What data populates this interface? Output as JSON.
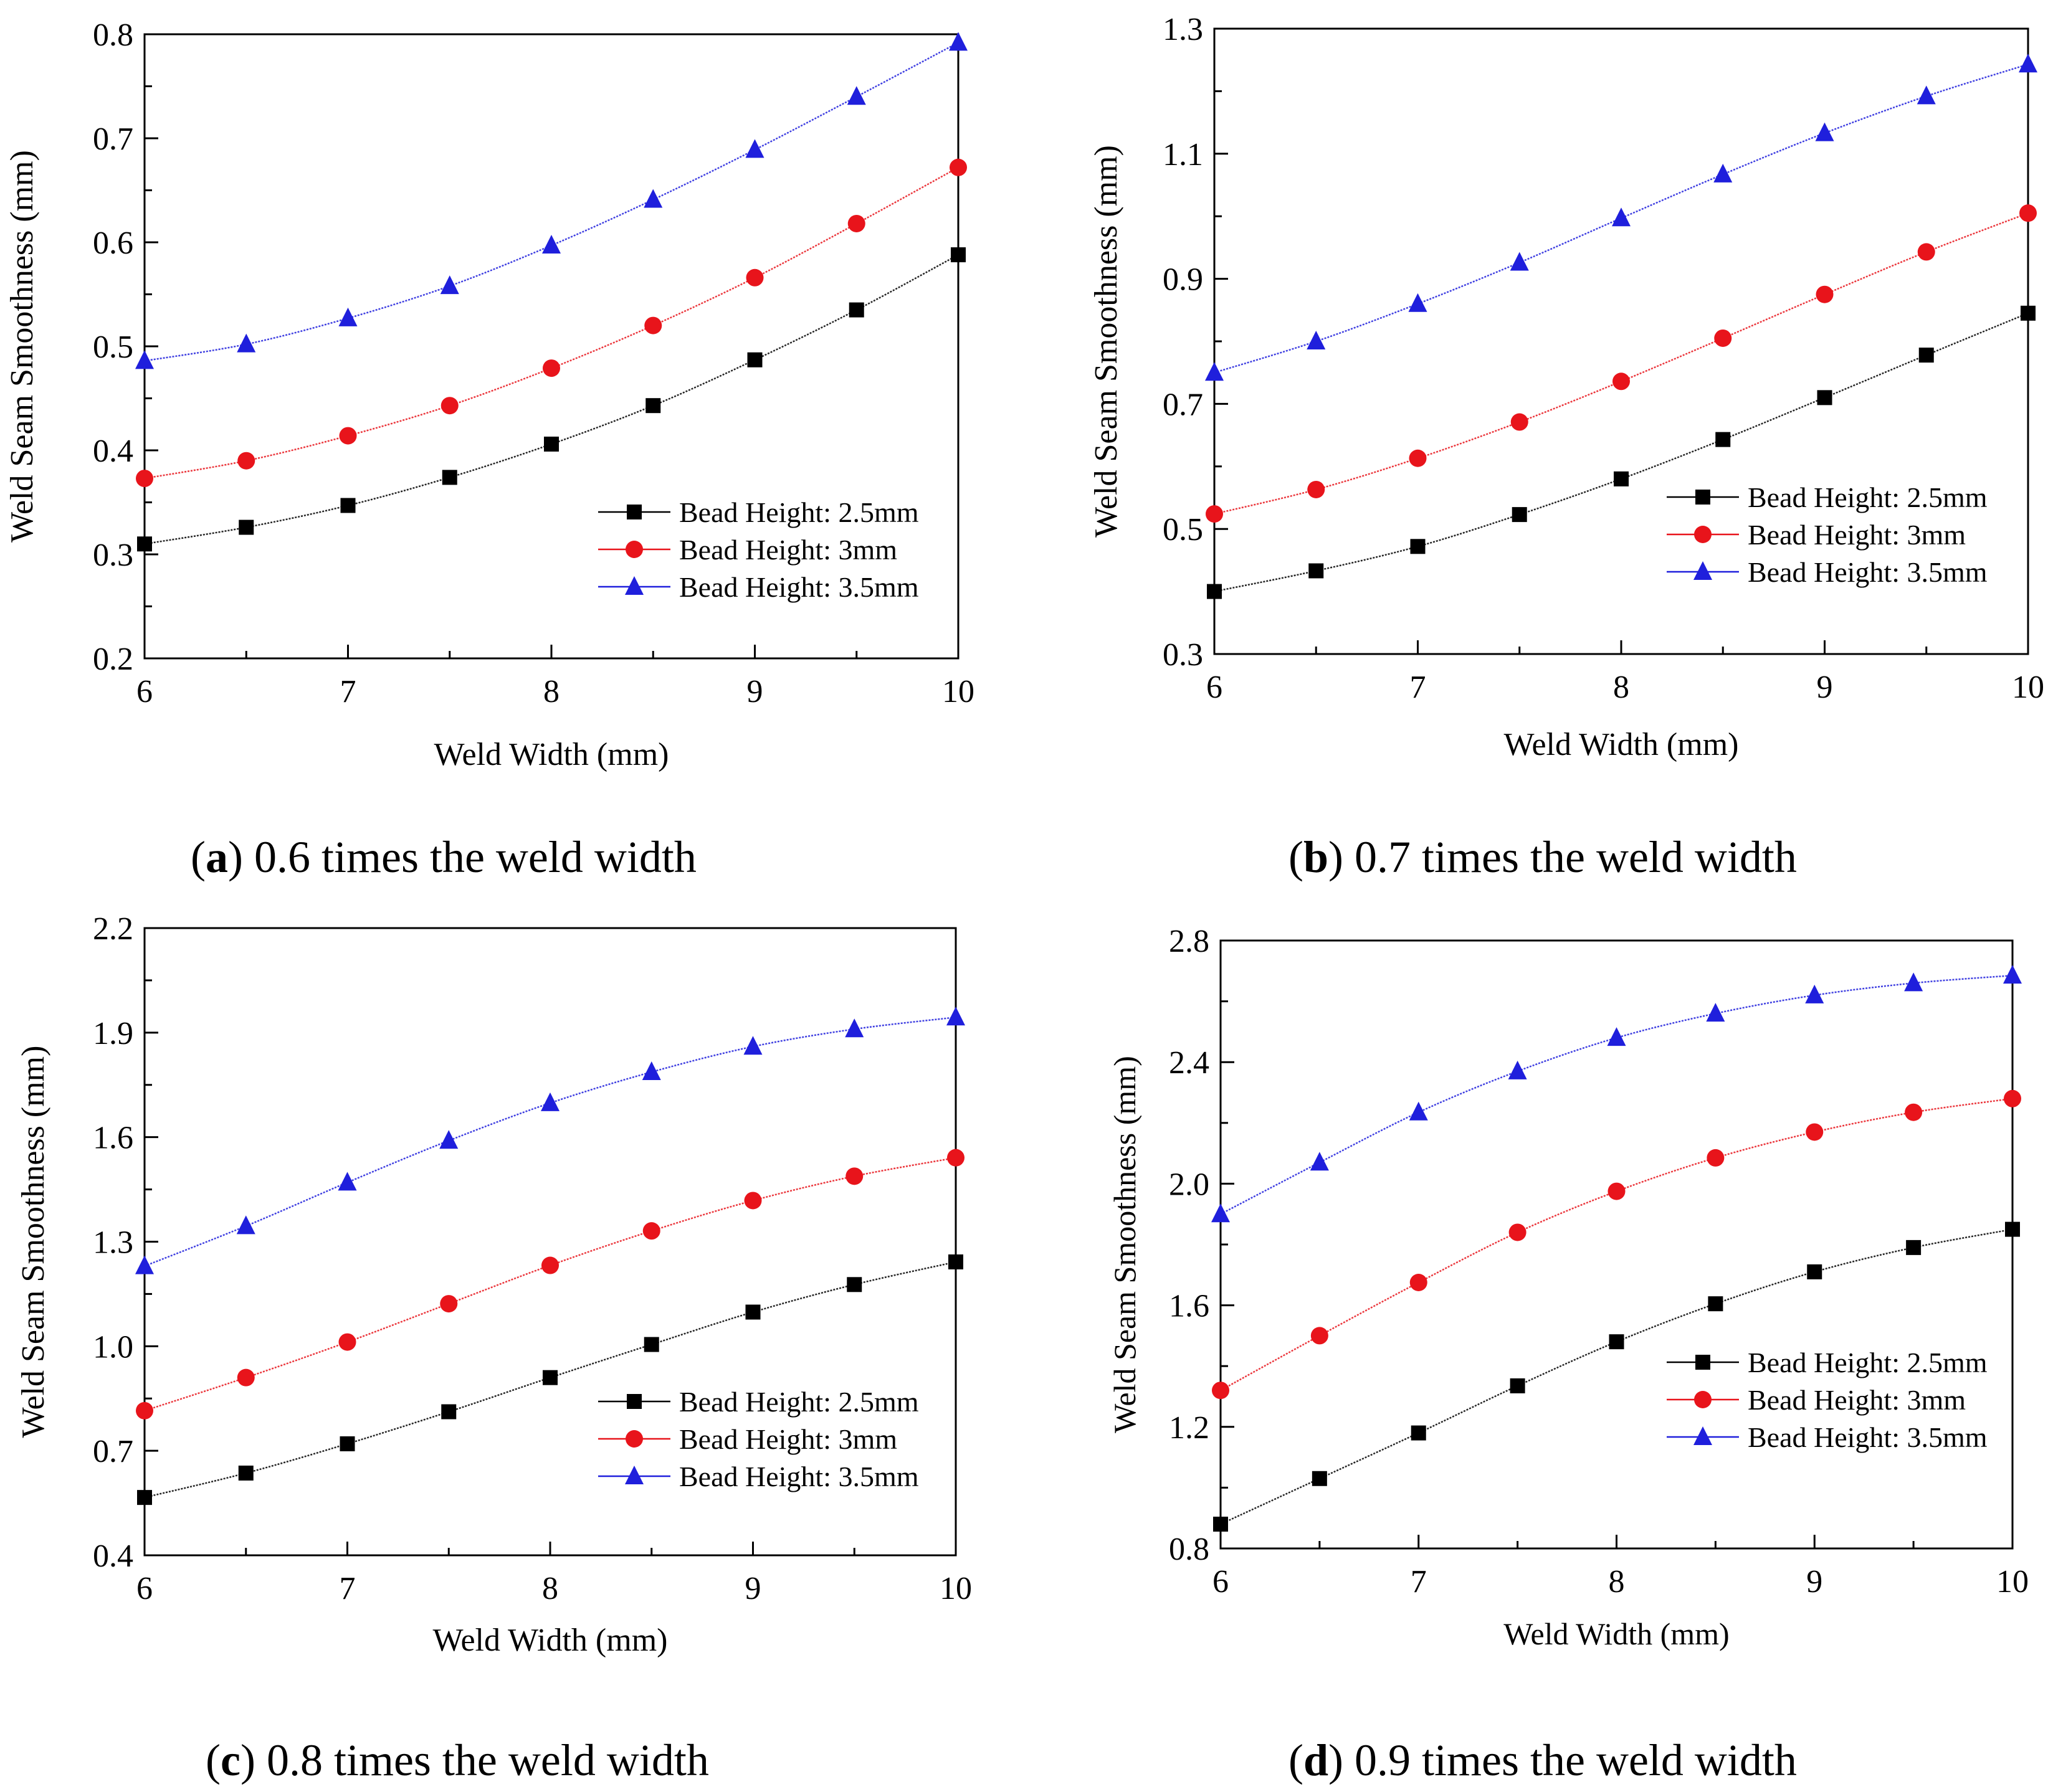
{
  "figure": {
    "captions": [
      {
        "letter": "a",
        "text": " 0.6 times the weld width"
      },
      {
        "letter": "b",
        "text": " 0.7 times the weld width"
      },
      {
        "letter": "c",
        "text": " 0.8 times the weld width"
      },
      {
        "letter": "d",
        "text": " 0.9 times the weld width"
      }
    ]
  },
  "colors": {
    "series_black": "#000000",
    "series_red": "#e8141b",
    "series_blue": "#1f1fdc"
  },
  "chart_data": [
    {
      "type": "line",
      "panel": "a",
      "xlabel": "Weld Width (mm)",
      "ylabel": "Weld Seam Smoothness (mm)",
      "xlim": [
        6,
        10
      ],
      "ylim": [
        0.2,
        0.8
      ],
      "xticks": [
        "6",
        "7",
        "8",
        "9",
        "10"
      ],
      "yticks": [
        "0.2",
        "0.3",
        "0.4",
        "0.5",
        "0.6",
        "0.7",
        "0.8"
      ],
      "legend_position": "bottom-right",
      "x": [
        6,
        6.5,
        7,
        7.5,
        8,
        8.5,
        9,
        9.5,
        10
      ],
      "series": [
        {
          "name": "Bead Height: 2.5mm",
          "marker": "square",
          "color": "#000000",
          "values": [
            0.31,
            0.326,
            0.347,
            0.374,
            0.406,
            0.443,
            0.487,
            0.535,
            0.588
          ]
        },
        {
          "name": "Bead Height: 3mm",
          "marker": "circle",
          "color": "#e8141b",
          "values": [
            0.373,
            0.39,
            0.414,
            0.443,
            0.479,
            0.52,
            0.566,
            0.618,
            0.672
          ]
        },
        {
          "name": "Bead Height: 3.5mm",
          "marker": "triangle",
          "color": "#1f1fdc",
          "values": [
            0.486,
            0.502,
            0.527,
            0.558,
            0.597,
            0.641,
            0.689,
            0.74,
            0.792
          ]
        }
      ]
    },
    {
      "type": "line",
      "panel": "b",
      "xlabel": "Weld Width (mm)",
      "ylabel": "Weld Seam Smoothness (mm)",
      "xlim": [
        6,
        10
      ],
      "ylim": [
        0.3,
        1.3
      ],
      "xticks": [
        "6",
        "7",
        "8",
        "9",
        "10"
      ],
      "yticks": [
        "0.3",
        "0.5",
        "0.7",
        "0.9",
        "1.1",
        "1.3"
      ],
      "legend_position": "bottom-right",
      "x": [
        6,
        6.5,
        7,
        7.5,
        8,
        8.5,
        9,
        9.5,
        10
      ],
      "series": [
        {
          "name": "Bead Height: 2.5mm",
          "marker": "square",
          "color": "#000000",
          "values": [
            0.4,
            0.433,
            0.472,
            0.523,
            0.58,
            0.643,
            0.71,
            0.778,
            0.845
          ]
        },
        {
          "name": "Bead Height: 3mm",
          "marker": "circle",
          "color": "#e8141b",
          "values": [
            0.524,
            0.563,
            0.613,
            0.671,
            0.736,
            0.805,
            0.875,
            0.943,
            1.005
          ]
        },
        {
          "name": "Bead Height: 3.5mm",
          "marker": "triangle",
          "color": "#1f1fdc",
          "values": [
            0.75,
            0.8,
            0.86,
            0.926,
            0.997,
            1.067,
            1.133,
            1.192,
            1.243
          ]
        }
      ]
    },
    {
      "type": "line",
      "panel": "c",
      "xlabel": "Weld Width (mm)",
      "ylabel": "Weld Seam Smoothness (mm)",
      "xlim": [
        6,
        10
      ],
      "ylim": [
        0.4,
        2.2
      ],
      "xticks": [
        "6",
        "7",
        "8",
        "9",
        "10"
      ],
      "yticks": [
        "0.4",
        "0.7",
        "1.0",
        "1.3",
        "1.6",
        "1.9",
        "2.2"
      ],
      "legend_position": "bottom-right",
      "x": [
        6,
        6.5,
        7,
        7.5,
        8,
        8.5,
        9,
        9.5,
        10
      ],
      "series": [
        {
          "name": "Bead Height: 2.5mm",
          "marker": "square",
          "color": "#000000",
          "values": [
            0.566,
            0.636,
            0.72,
            0.812,
            0.91,
            1.005,
            1.098,
            1.177,
            1.242
          ]
        },
        {
          "name": "Bead Height: 3mm",
          "marker": "circle",
          "color": "#e8141b",
          "values": [
            0.815,
            0.91,
            1.012,
            1.122,
            1.232,
            1.331,
            1.418,
            1.488,
            1.541
          ]
        },
        {
          "name": "Bead Height: 3.5mm",
          "marker": "triangle",
          "color": "#1f1fdc",
          "values": [
            1.23,
            1.345,
            1.47,
            1.59,
            1.698,
            1.787,
            1.86,
            1.91,
            1.944
          ]
        }
      ]
    },
    {
      "type": "line",
      "panel": "d",
      "xlabel": "Weld Width (mm)",
      "ylabel": "Weld Seam Smoothness (mm)",
      "xlim": [
        6,
        10
      ],
      "ylim": [
        0.8,
        2.8
      ],
      "xticks": [
        "6",
        "7",
        "8",
        "9",
        "10"
      ],
      "yticks": [
        "0.8",
        "1.2",
        "1.6",
        "2.0",
        "2.4",
        "2.8"
      ],
      "legend_position": "bottom-right",
      "x": [
        6,
        6.5,
        7,
        7.5,
        8,
        8.5,
        9,
        9.5,
        10
      ],
      "series": [
        {
          "name": "Bead Height: 2.5mm",
          "marker": "square",
          "color": "#000000",
          "values": [
            0.88,
            1.03,
            1.18,
            1.335,
            1.48,
            1.605,
            1.71,
            1.79,
            1.85
          ]
        },
        {
          "name": "Bead Height: 3mm",
          "marker": "circle",
          "color": "#e8141b",
          "values": [
            1.32,
            1.5,
            1.675,
            1.84,
            1.975,
            2.085,
            2.17,
            2.235,
            2.28
          ]
        },
        {
          "name": "Bead Height: 3.5mm",
          "marker": "triangle",
          "color": "#1f1fdc",
          "values": [
            1.9,
            2.07,
            2.235,
            2.37,
            2.48,
            2.56,
            2.62,
            2.66,
            2.685
          ]
        }
      ]
    }
  ]
}
